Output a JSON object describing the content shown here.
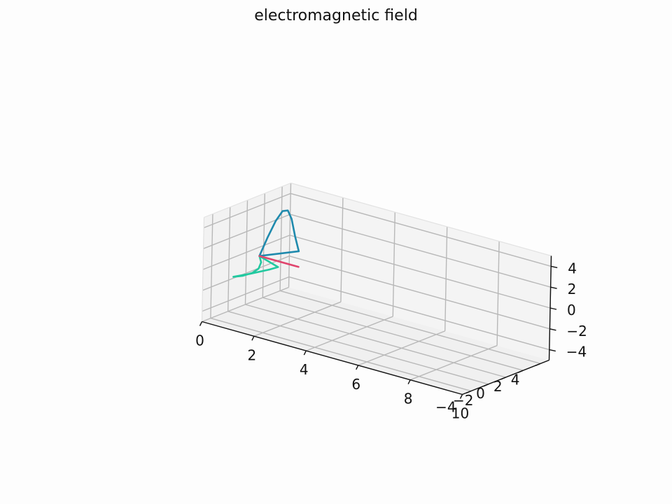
{
  "chart_data": {
    "type": "line",
    "title": "electromagnetic field",
    "projection": "3d",
    "grid": true,
    "x_axis": {
      "range": [
        0,
        10
      ],
      "ticks": [
        "0",
        "2",
        "4",
        "6",
        "8",
        "10"
      ]
    },
    "y_axis": {
      "range": [
        -5,
        5
      ],
      "ticks": [
        "−4",
        "−2",
        "0",
        "2",
        "4"
      ]
    },
    "z_axis": {
      "range": [
        -5,
        5
      ],
      "ticks": [
        "−4",
        "−2",
        "0",
        "2",
        "4"
      ]
    },
    "series": [
      {
        "color": "#1f8aad",
        "description": "electric field curve (upward)",
        "points": [
          [
            0.5,
            0,
            0
          ],
          [
            0.8,
            0,
            2.0
          ],
          [
            1.1,
            0,
            3.8
          ],
          [
            1.35,
            0,
            4.9
          ],
          [
            1.55,
            0,
            5.1
          ],
          [
            1.7,
            0,
            4.4
          ],
          [
            1.85,
            0,
            2.8
          ],
          [
            2.0,
            0,
            1.5
          ],
          [
            0.5,
            0,
            0
          ]
        ]
      },
      {
        "color": "#22c9a0",
        "description": "magnetic field curve (sideways)",
        "points": [
          [
            0.5,
            0,
            0
          ],
          [
            0.9,
            -1.0,
            0
          ],
          [
            1.2,
            -2.2,
            0
          ],
          [
            1.3,
            -3.2,
            0
          ],
          [
            1.25,
            -4.2,
            0
          ],
          [
            1.1,
            -4.8,
            0
          ],
          [
            1.3,
            -3.5,
            0
          ],
          [
            1.5,
            -1.8,
            0
          ],
          [
            1.55,
            -1.0,
            0
          ],
          [
            0.5,
            0,
            0
          ]
        ]
      },
      {
        "color": "#e0456e",
        "description": "propagation vector",
        "points": [
          [
            0.5,
            0,
            0
          ],
          [
            2.0,
            0,
            0
          ]
        ]
      }
    ]
  }
}
